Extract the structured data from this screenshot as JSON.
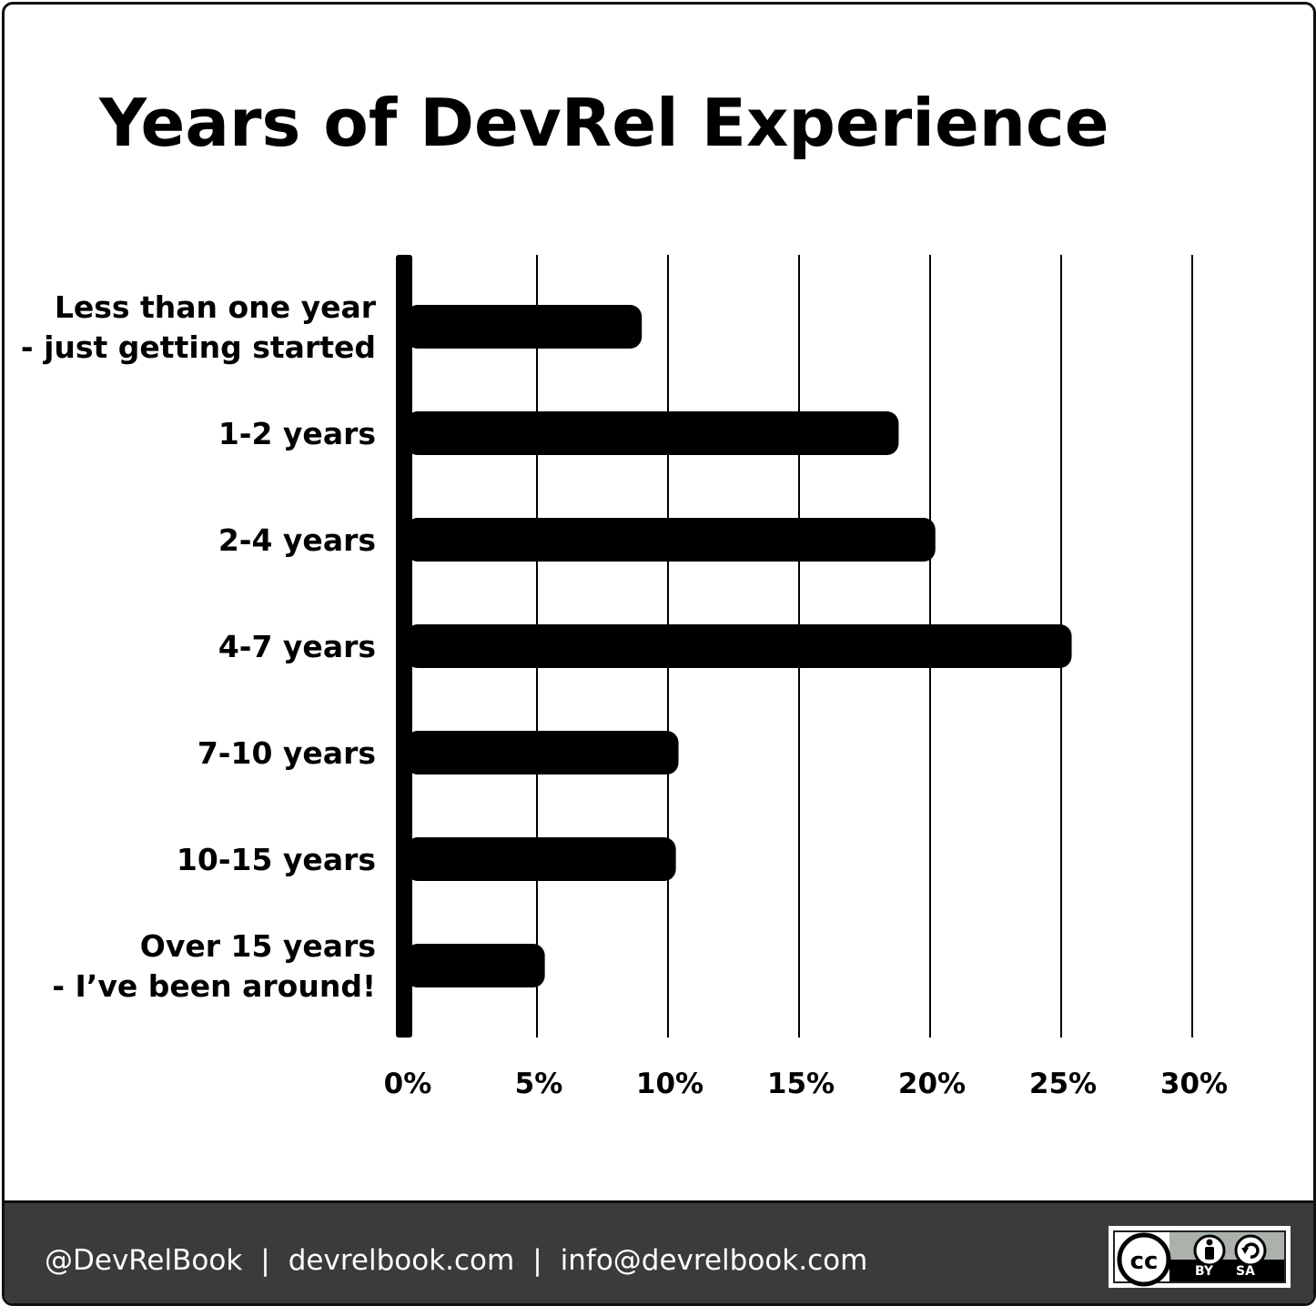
{
  "title": "Years of DevRel Experience",
  "chart_data": {
    "type": "bar",
    "orientation": "horizontal",
    "title": "Years of DevRel Experience",
    "categories": [
      [
        "Less than one year",
        "- just getting started"
      ],
      [
        "1-2 years"
      ],
      [
        "2-4 years"
      ],
      [
        "4-7 years"
      ],
      [
        "7-10 years"
      ],
      [
        "10-15 years"
      ],
      [
        "Over 15 years",
        "- I’ve been around!"
      ]
    ],
    "values": [
      9.0,
      18.8,
      20.2,
      25.4,
      10.4,
      10.3,
      5.3
    ],
    "xlim": [
      0,
      30
    ],
    "ticks": [
      0,
      5,
      10,
      15,
      20,
      25,
      30
    ],
    "tick_labels": [
      "0%",
      "5%",
      "10%",
      "15%",
      "20%",
      "25%",
      "30%"
    ],
    "unit": "%",
    "grid": "vertical",
    "bar_color": "#000000"
  },
  "footer": {
    "handle": "@DevRelBook",
    "separator": "|",
    "website": "devrelbook.com",
    "email": "info@devrelbook.com",
    "background": "#3b3b3d",
    "text_color": "#ffffff"
  },
  "license": {
    "cc": "cc",
    "by": "BY",
    "sa": "SA"
  }
}
